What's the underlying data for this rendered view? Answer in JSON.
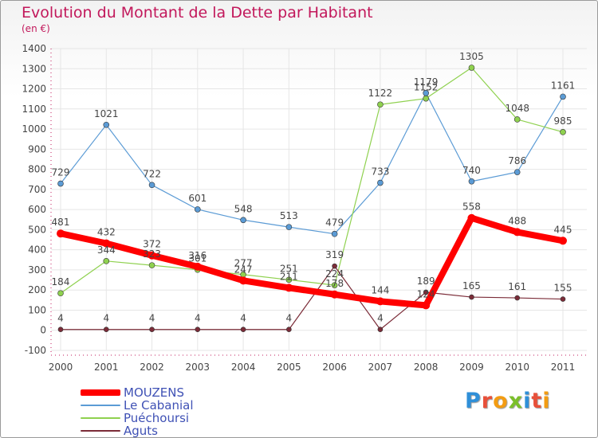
{
  "chart_data": {
    "type": "line",
    "title": "Evolution du Montant de la Dette par Habitant",
    "subtitle": "(en €)",
    "xlabel": "",
    "ylabel": "",
    "x": [
      "2000",
      "2001",
      "2002",
      "2003",
      "2004",
      "2005",
      "2006",
      "2007",
      "2008",
      "2009",
      "2010",
      "2011"
    ],
    "ylim": [
      -100,
      1400
    ],
    "yticks": [
      "-100",
      "0",
      "100",
      "200",
      "300",
      "400",
      "500",
      "600",
      "700",
      "800",
      "900",
      "1000",
      "1100",
      "1200",
      "1300",
      "1400"
    ],
    "grid": true,
    "legend_position": "bottom-left",
    "series": [
      {
        "name": "MOUZENS",
        "color": "#ff0000",
        "values": [
          481,
          432,
          372,
          316,
          247,
          211,
          178,
          144,
          124,
          558,
          488,
          445
        ],
        "labels": [
          "481",
          "432",
          "372",
          "316",
          "247",
          "211",
          "178",
          "144",
          "124",
          "558",
          "488",
          "445"
        ]
      },
      {
        "name": "Le Cabanial",
        "color": "#5b9bd5",
        "values": [
          729,
          1021,
          722,
          601,
          548,
          513,
          479,
          733,
          1179,
          740,
          786,
          1161
        ],
        "labels": [
          "729",
          "1021",
          "722",
          "601",
          "548",
          "513",
          "479",
          "733",
          "1179",
          "740",
          "786",
          "1161"
        ]
      },
      {
        "name": "Puéchoursi",
        "color": "#8fd14f",
        "values": [
          184,
          344,
          323,
          301,
          277,
          251,
          224,
          1122,
          1152,
          1305,
          1048,
          985
        ],
        "labels": [
          "184",
          "344",
          "323",
          "301",
          "277",
          "251",
          "224",
          "1122",
          "1152",
          "1305",
          "1048",
          "985"
        ]
      },
      {
        "name": "Aguts",
        "color": "#7b2c38",
        "values": [
          4,
          4,
          4,
          4,
          4,
          4,
          319,
          4,
          189,
          165,
          161,
          155
        ],
        "labels": [
          "4",
          "4",
          "4",
          "4",
          "4",
          "4",
          "319",
          "4",
          "189",
          "165",
          "161",
          "155"
        ]
      }
    ]
  },
  "logo": {
    "text": "Proxiti",
    "colors": [
      "#2f8fd8",
      "#e8503a",
      "#f39c12",
      "#7bbf2a",
      "#2f8fd8",
      "#e8503a",
      "#f39c12"
    ]
  }
}
